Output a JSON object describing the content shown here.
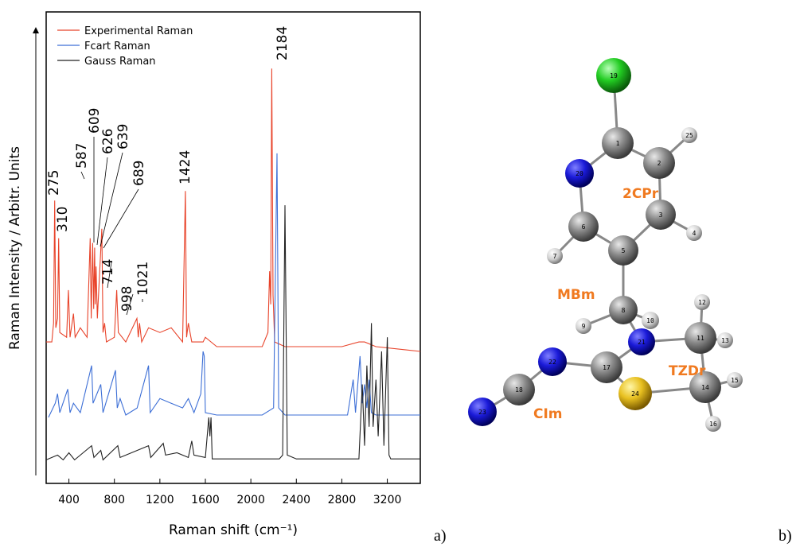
{
  "chart_data": {
    "type": "line",
    "xlabel": "Raman shift (cm⁻¹)",
    "ylabel": "Raman Intensity / Arbitr. Units",
    "xlim": [
      200,
      3490
    ],
    "ylim": [
      0,
      100
    ],
    "xticks": [
      400,
      800,
      1200,
      1600,
      2000,
      2400,
      2800,
      3200
    ],
    "legend": "upper left",
    "series": [
      {
        "name": "Experimental Raman",
        "color": "#e8432a",
        "x": [
          200,
          250,
          265,
          275,
          285,
          300,
          310,
          320,
          380,
          395,
          410,
          440,
          455,
          500,
          560,
          587,
          596,
          609,
          618,
          626,
          632,
          639,
          650,
          689,
          700,
          714,
          730,
          800,
          820,
          835,
          900,
          998,
          1010,
          1021,
          1040,
          1100,
          1200,
          1300,
          1400,
          1424,
          1435,
          1450,
          1480,
          1580,
          1600,
          1700,
          2000,
          2100,
          2150,
          2165,
          2175,
          2184,
          2195,
          2210,
          2300,
          2800,
          2950,
          3000,
          3100,
          3490
        ],
        "values": [
          30,
          30,
          34,
          60,
          33,
          35,
          52,
          32,
          31,
          41,
          31,
          36,
          31,
          33,
          31,
          52,
          35,
          51,
          37,
          50,
          38,
          46,
          35,
          54,
          32,
          34,
          30,
          31,
          41,
          32,
          30,
          35,
          31,
          34,
          30,
          33,
          32,
          33,
          30,
          62,
          31,
          34,
          30,
          30,
          31,
          29,
          29,
          29,
          32,
          45,
          38,
          88,
          40,
          30,
          29,
          29,
          30,
          30,
          29,
          28
        ]
      },
      {
        "name": "Fcart Raman",
        "color": "#3d6fd6",
        "x": [
          220,
          280,
          300,
          320,
          390,
          410,
          440,
          500,
          600,
          612,
          680,
          700,
          810,
          825,
          850,
          900,
          1000,
          1100,
          1115,
          1200,
          1300,
          1400,
          1450,
          1500,
          1560,
          1580,
          1590,
          1600,
          1700,
          2100,
          2200,
          2230,
          2245,
          2300,
          2850,
          2900,
          2920,
          2960,
          2980,
          3000,
          3020,
          3040,
          3060,
          3100,
          3490
        ],
        "values": [
          14,
          17,
          19,
          15,
          20,
          15,
          17,
          15,
          25,
          17,
          21,
          15,
          24,
          16,
          18,
          14.5,
          16,
          25,
          15,
          18,
          17,
          16,
          18,
          15,
          19,
          28,
          27,
          15,
          14.5,
          14.5,
          16,
          70,
          16,
          14.5,
          14.5,
          22,
          15,
          27,
          17,
          21,
          16,
          22,
          15,
          14.5,
          14.5
        ]
      },
      {
        "name": "Gauss Raman",
        "color": "#222222",
        "x": [
          200,
          300,
          350,
          400,
          450,
          600,
          620,
          680,
          700,
          830,
          850,
          1100,
          1120,
          1230,
          1250,
          1350,
          1450,
          1480,
          1500,
          1600,
          1630,
          1640,
          1650,
          1660,
          2250,
          2280,
          2300,
          2320,
          2400,
          2950,
          2980,
          3000,
          3020,
          3040,
          3060,
          3075,
          3100,
          3120,
          3150,
          3170,
          3200,
          3215,
          3230,
          3490
        ],
        "values": [
          5,
          6,
          5,
          6.5,
          5,
          8,
          5.5,
          7,
          5,
          8,
          5.5,
          8,
          5.5,
          8.5,
          6,
          6.5,
          5.5,
          9,
          6,
          5.5,
          14,
          10,
          14,
          5.2,
          5.2,
          6,
          59,
          6,
          5.2,
          5.2,
          21,
          8,
          25,
          12,
          34,
          12,
          22,
          10,
          28,
          8,
          31,
          6,
          5.2,
          5.2
        ]
      }
    ],
    "peak_labels": [
      275,
      310,
      587,
      609,
      626,
      639,
      689,
      714,
      998,
      1021,
      1424,
      2184
    ],
    "panel_label": "a)"
  },
  "diagram": {
    "atoms": [
      "19",
      "1",
      "2",
      "25",
      "20",
      "3",
      "4",
      "6",
      "5",
      "7",
      "8",
      "9",
      "10",
      "21",
      "11",
      "12",
      "13",
      "17",
      "22",
      "18",
      "23",
      "24",
      "14",
      "15",
      "16"
    ],
    "groups": [
      "2CPr",
      "MBm",
      "TZDr",
      "CIm"
    ],
    "panel_label": "b)"
  }
}
